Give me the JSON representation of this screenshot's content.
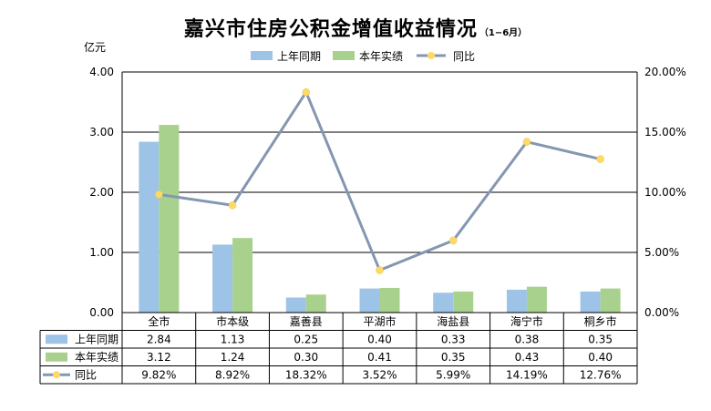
{
  "title": "嘉兴市住房公积金增值收益情况",
  "subtitle": "（1−6月）",
  "colors": {
    "prev": "#9DC3E6",
    "curr": "#A9D18E",
    "line": "#8497B0",
    "marker": "#FFD966"
  },
  "chart_data": {
    "type": "bar",
    "categories": [
      "全市",
      "市本级",
      "嘉善县",
      "平湖市",
      "海盐县",
      "海宁市",
      "桐乡市"
    ],
    "series": [
      {
        "name": "上年同期",
        "values": [
          2.84,
          1.13,
          0.25,
          0.4,
          0.33,
          0.38,
          0.35
        ],
        "axis": "left",
        "kind": "bar"
      },
      {
        "name": "本年实绩",
        "values": [
          3.12,
          1.24,
          0.3,
          0.41,
          0.35,
          0.43,
          0.4
        ],
        "axis": "left",
        "kind": "bar"
      },
      {
        "name": "同比",
        "values": [
          9.82,
          8.92,
          18.32,
          3.52,
          5.99,
          14.19,
          12.76
        ],
        "axis": "right",
        "kind": "line"
      }
    ],
    "table_rows": [
      [
        "2.84",
        "1.13",
        "0.25",
        "0.40",
        "0.33",
        "0.38",
        "0.35"
      ],
      [
        "3.12",
        "1.24",
        "0.30",
        "0.41",
        "0.35",
        "0.43",
        "0.40"
      ],
      [
        "9.82%",
        "8.92%",
        "18.32%",
        "3.52%",
        "5.99%",
        "14.19%",
        "12.76%"
      ]
    ],
    "ylabel": "亿元",
    "ylim": [
      0,
      4
    ],
    "yticks": [
      "0.00",
      "1.00",
      "2.00",
      "3.00",
      "4.00"
    ],
    "y2lim": [
      0,
      20
    ],
    "y2ticks": [
      "0.00%",
      "5.00%",
      "10.00%",
      "15.00%",
      "20.00%"
    ],
    "grid": true,
    "legend_position": "top"
  }
}
